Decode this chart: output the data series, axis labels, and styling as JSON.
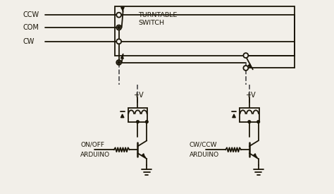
{
  "bg_color": "#f2efe9",
  "line_color": "#1a1508",
  "figsize": [
    4.74,
    2.75
  ],
  "dpi": 100,
  "labels": {
    "ccw": "CCW",
    "com": "COM",
    "cw": "CW",
    "turntable": "TURNTABLE\nSWITCH",
    "onoff_line1": "ON/OFF",
    "onoff_line2": "ARDUINO",
    "cwccw_line1": "CW/CCW",
    "cwccw_line2": "ARDUINO",
    "pv": "+V"
  }
}
